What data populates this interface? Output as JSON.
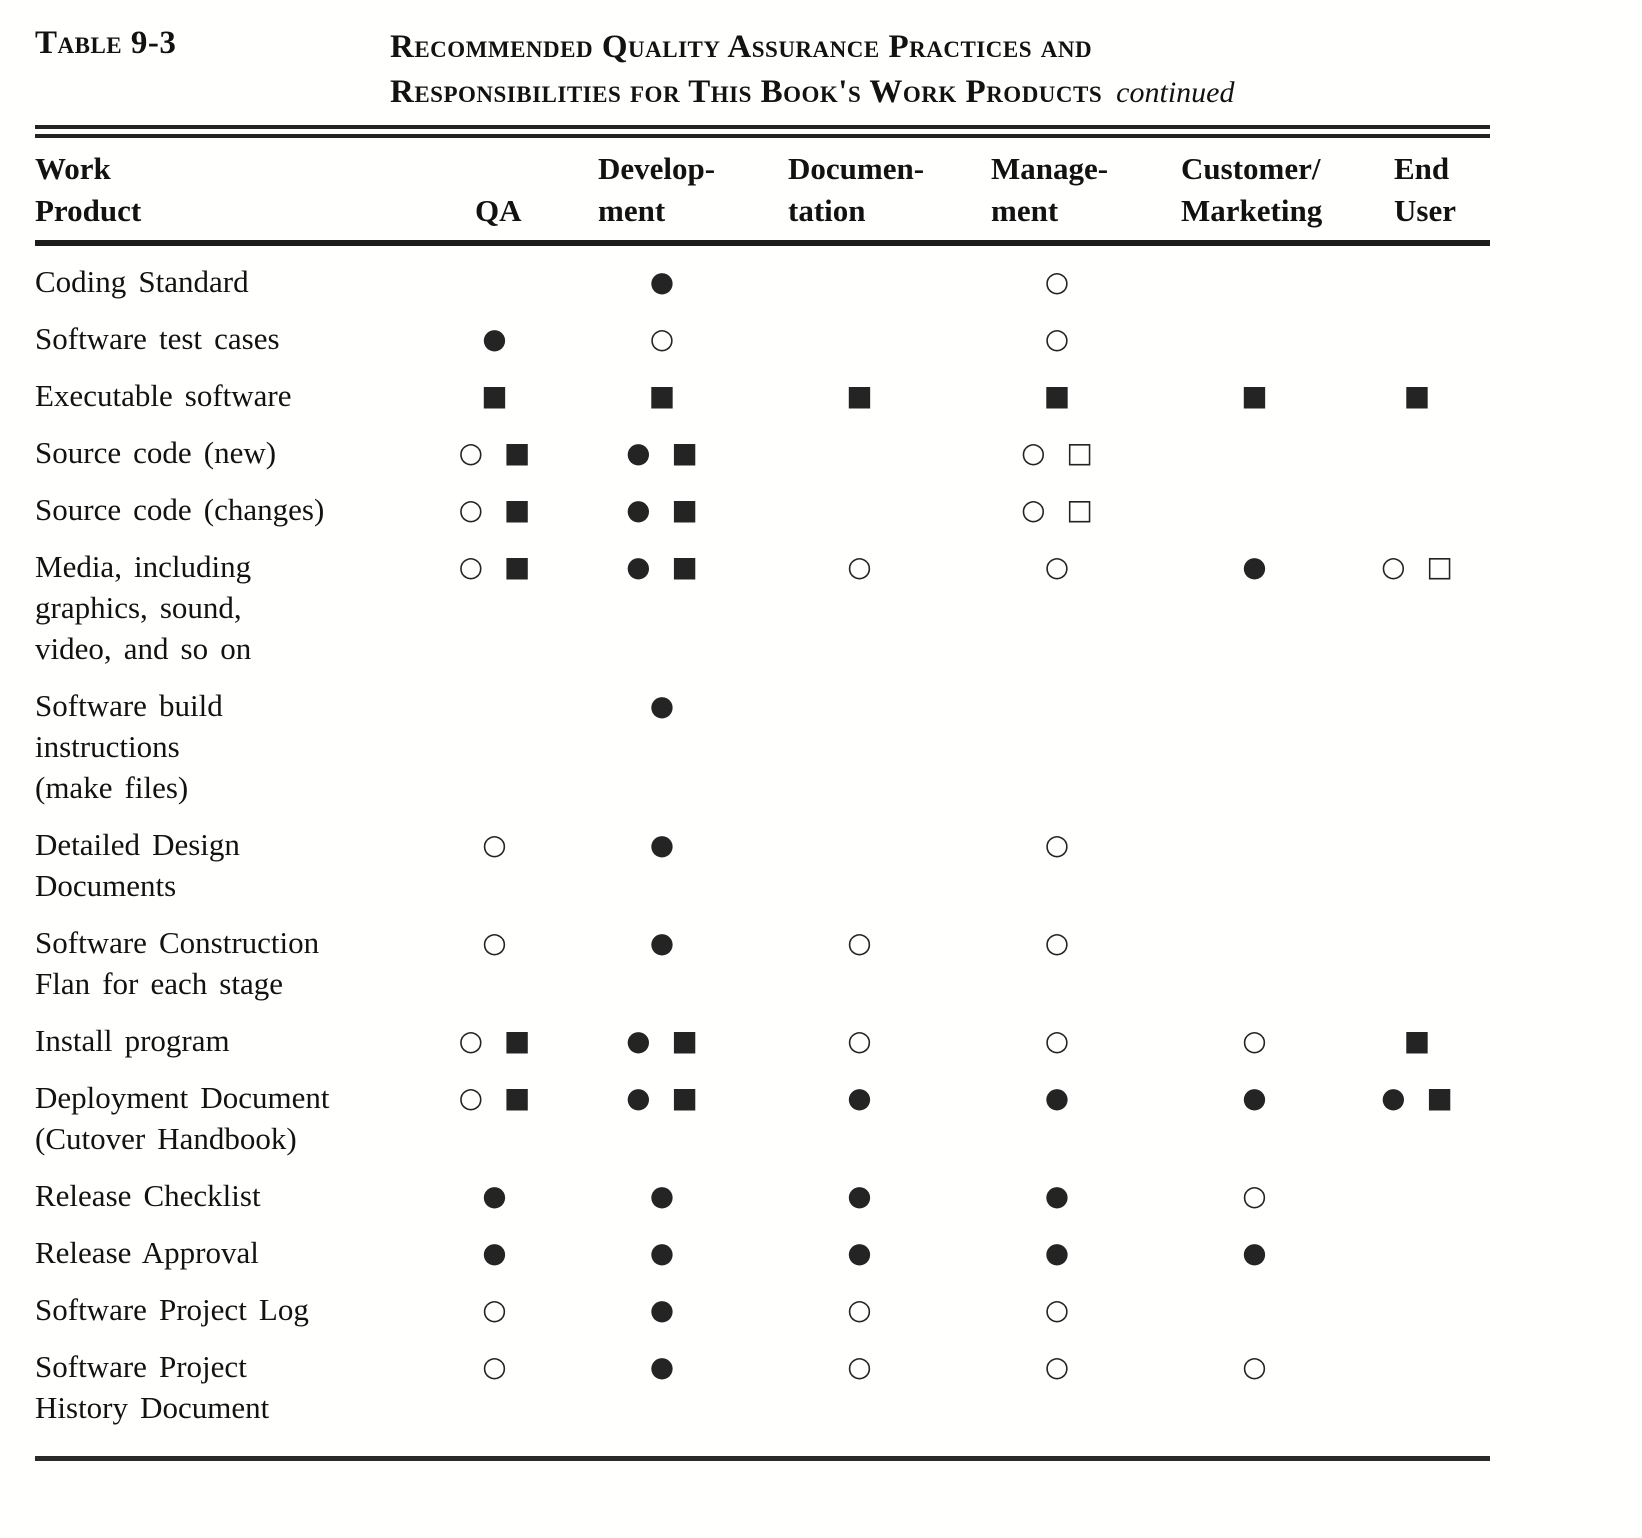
{
  "document": {
    "table_label": "Table 9-3",
    "title_line1": "Recommended Quality Assurance Practices and",
    "title_line2": "Responsibilities for This Book's Work Products",
    "continued_note": "continued"
  },
  "symbol_legend": {
    "filled-circle-icon": "●",
    "open-circle-icon": "○",
    "filled-square-icon": "■",
    "open-square-icon": "□"
  },
  "table": {
    "headers": [
      "Work\nProduct",
      "QA",
      "Develop-\nment",
      "Documen-\ntation",
      "Manage-\nment",
      "Customer/\nMarketing",
      "End\nUser"
    ],
    "rows": [
      {
        "label": "Coding Standard",
        "cells": [
          "",
          "●",
          "",
          "○",
          "",
          ""
        ]
      },
      {
        "label": "Software test cases",
        "cells": [
          "●",
          "○",
          "",
          "○",
          "",
          ""
        ]
      },
      {
        "label": "Executable software",
        "cells": [
          "■",
          "■",
          "■",
          "■",
          "■",
          "■"
        ]
      },
      {
        "label": "Source code (new)",
        "cells": [
          "○ ■",
          "● ■",
          "",
          "○ □",
          "",
          ""
        ]
      },
      {
        "label": "Source code (changes)",
        "cells": [
          "○ ■",
          "● ■",
          "",
          "○ □",
          "",
          ""
        ]
      },
      {
        "label": "Media, including\ngraphics, sound,\nvideo, and so on",
        "cells": [
          "○ ■",
          "● ■",
          "○",
          "○",
          "●",
          "○ □"
        ]
      },
      {
        "label": "Software build\ninstructions\n(make files)",
        "cells": [
          "",
          "●",
          "",
          "",
          "",
          ""
        ]
      },
      {
        "label": "Detailed Design\nDocuments",
        "cells": [
          "○",
          "●",
          "",
          "○",
          "",
          ""
        ]
      },
      {
        "label": "Software Construction\nFlan for each stage",
        "cells": [
          "○",
          "●",
          "○",
          "○",
          "",
          ""
        ]
      },
      {
        "label": "Install program",
        "cells": [
          "○ ■",
          "● ■",
          "○",
          "○",
          "○",
          "■"
        ]
      },
      {
        "label": "Deployment Document\n(Cutover Handbook)",
        "cells": [
          "○ ■",
          "● ■",
          "●",
          "●",
          "●",
          "● ■"
        ]
      },
      {
        "label": "Release Checklist",
        "cells": [
          "●",
          "●",
          "●",
          "●",
          "○",
          ""
        ]
      },
      {
        "label": "Release Approval",
        "cells": [
          "●",
          "●",
          "●",
          "●",
          "●",
          ""
        ]
      },
      {
        "label": "Software Project Log",
        "cells": [
          "○",
          "●",
          "○",
          "○",
          "",
          ""
        ]
      },
      {
        "label": "Software Project\nHistory Document",
        "cells": [
          "○",
          "●",
          "○",
          "○",
          "○",
          ""
        ]
      }
    ]
  }
}
